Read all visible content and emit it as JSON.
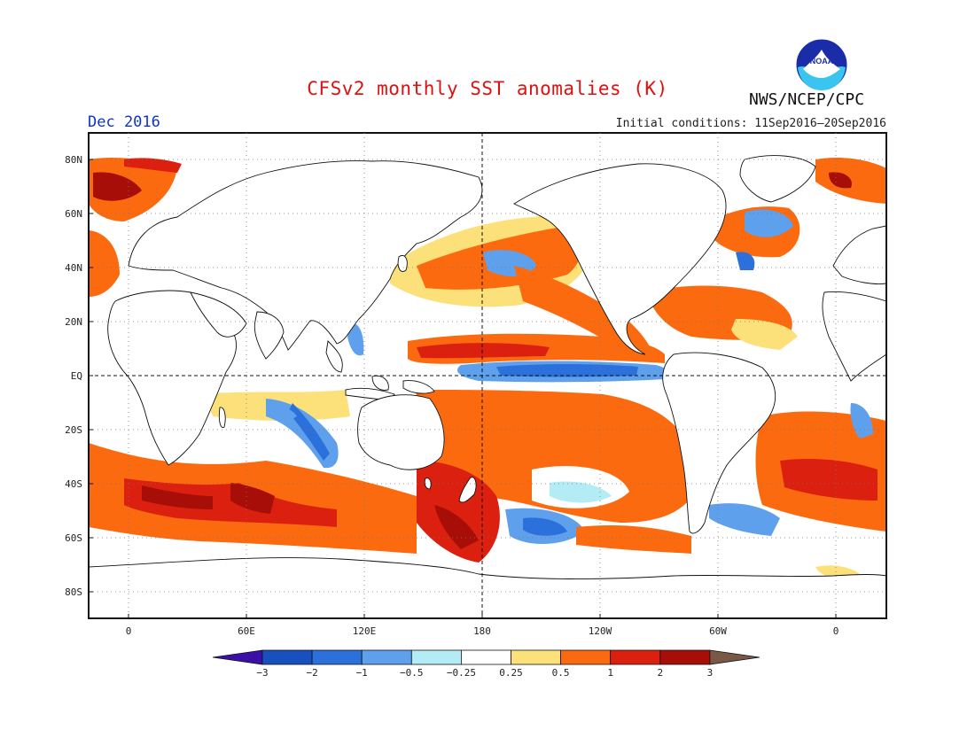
{
  "header": {
    "title": "CFSv2 monthly SST anomalies (K)",
    "month": "Dec 2016",
    "initial_conditions": "Initial conditions: 11Sep2016–20Sep2016",
    "agency": "NWS/NCEP/CPC",
    "logo_text": "NOAA"
  },
  "map": {
    "lon_labels": [
      "0",
      "60E",
      "120E",
      "180",
      "120W",
      "60W",
      "0"
    ],
    "lat_labels": [
      "80N",
      "60N",
      "40N",
      "20N",
      "EQ",
      "20S",
      "40S",
      "60S",
      "80S"
    ]
  },
  "colorbar": {
    "labels": [
      "-3",
      "-2",
      "-1",
      "-0.5",
      "-0.25",
      "0.25",
      "0.5",
      "1",
      "2",
      "3"
    ],
    "colors": [
      "#3a10a8",
      "#1850c0",
      "#2c70dc",
      "#5ea0ec",
      "#b4ecf6",
      "#ffffff",
      "#fce07a",
      "#fc6a10",
      "#dc2010",
      "#a80e08",
      "#7a5846"
    ]
  }
}
